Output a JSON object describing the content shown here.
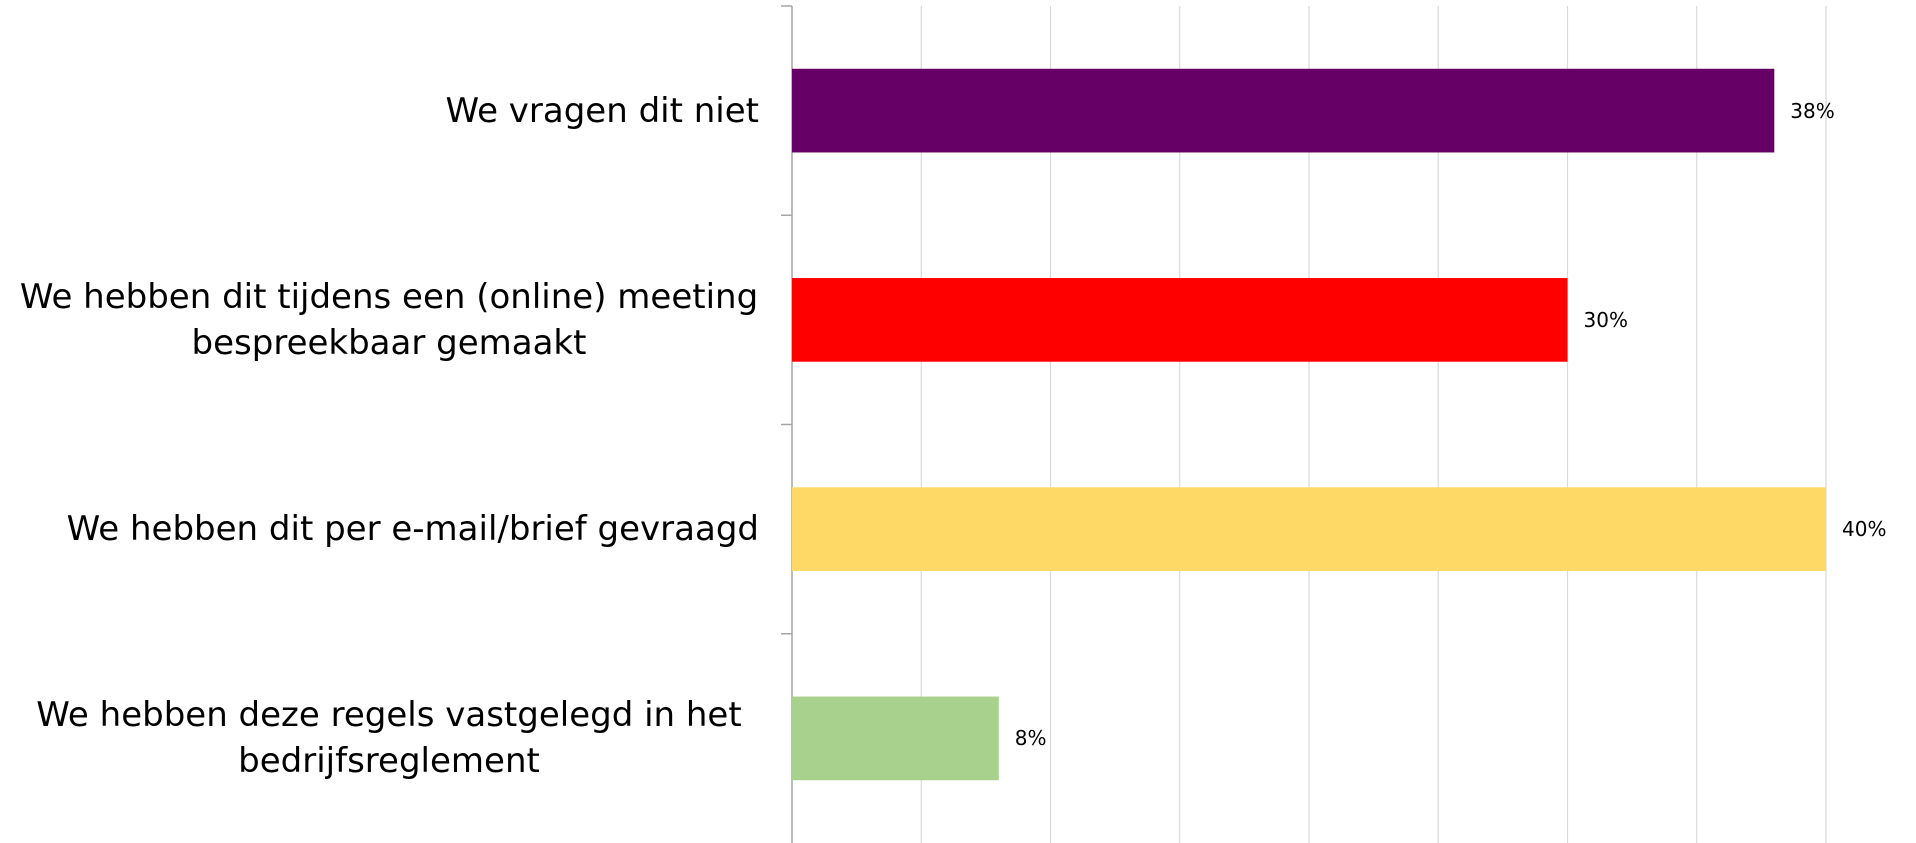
{
  "chart_data": {
    "type": "bar",
    "orientation": "horizontal",
    "categories": [
      "We vragen dit niet",
      "We hebben dit tijdens een (online) meeting bespreekbaar gemaakt",
      "We hebben dit per e-mail/brief gevraagd",
      "We hebben deze regels vastgelegd in het bedrijfsreglement"
    ],
    "values": [
      38,
      30,
      40,
      8
    ],
    "value_labels": [
      "38%",
      "30%",
      "40%",
      "8%"
    ],
    "colors": [
      "#660066",
      "#ff0000",
      "#ffd966",
      "#a9d18e"
    ],
    "xlim": [
      0,
      40
    ],
    "xticks": [
      0,
      5,
      10,
      15,
      20,
      25,
      30,
      35,
      40
    ],
    "grid": true
  }
}
